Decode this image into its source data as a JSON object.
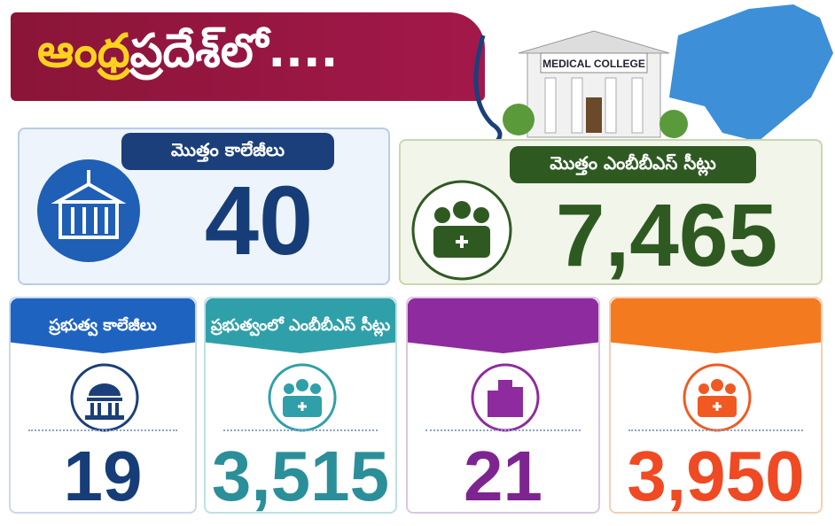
{
  "header": {
    "title_part1": "ఆంధ్ర",
    "title_part2": "ప్రదేశ్‌లో....",
    "building_sign": "MEDICAL COLLEGE"
  },
  "cards": [
    {
      "label": "మొత్తం కాలేజీలు",
      "value": "40"
    },
    {
      "label": "మొత్తం ఎంబీబీఎస్ సీట్లు",
      "value": "7,465"
    },
    {
      "label": "ప్రభుత్వ కాలేజీలు",
      "value": "19"
    },
    {
      "label": "ప్రభుత్వంలో ఎంబీబీఎస్ సీట్లు",
      "value": "3,515"
    },
    {
      "value": "21"
    },
    {
      "value": "3,950"
    }
  ]
}
